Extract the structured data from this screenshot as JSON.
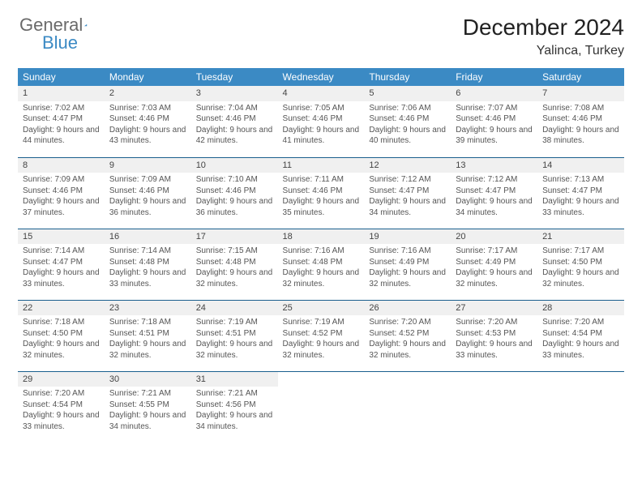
{
  "logo": {
    "part1": "General",
    "part2": "Blue"
  },
  "title": "December 2024",
  "location": "Yalinca, Turkey",
  "colors": {
    "accent": "#3b8ac4",
    "border": "#1a5f8e",
    "row_shade": "#f0f0f0",
    "text": "#333333",
    "muted": "#555555",
    "bg": "#ffffff"
  },
  "weekdays": [
    "Sunday",
    "Monday",
    "Tuesday",
    "Wednesday",
    "Thursday",
    "Friday",
    "Saturday"
  ],
  "days": [
    {
      "n": "1",
      "sunrise": "Sunrise: 7:02 AM",
      "sunset": "Sunset: 4:47 PM",
      "daylight": "Daylight: 9 hours and 44 minutes."
    },
    {
      "n": "2",
      "sunrise": "Sunrise: 7:03 AM",
      "sunset": "Sunset: 4:46 PM",
      "daylight": "Daylight: 9 hours and 43 minutes."
    },
    {
      "n": "3",
      "sunrise": "Sunrise: 7:04 AM",
      "sunset": "Sunset: 4:46 PM",
      "daylight": "Daylight: 9 hours and 42 minutes."
    },
    {
      "n": "4",
      "sunrise": "Sunrise: 7:05 AM",
      "sunset": "Sunset: 4:46 PM",
      "daylight": "Daylight: 9 hours and 41 minutes."
    },
    {
      "n": "5",
      "sunrise": "Sunrise: 7:06 AM",
      "sunset": "Sunset: 4:46 PM",
      "daylight": "Daylight: 9 hours and 40 minutes."
    },
    {
      "n": "6",
      "sunrise": "Sunrise: 7:07 AM",
      "sunset": "Sunset: 4:46 PM",
      "daylight": "Daylight: 9 hours and 39 minutes."
    },
    {
      "n": "7",
      "sunrise": "Sunrise: 7:08 AM",
      "sunset": "Sunset: 4:46 PM",
      "daylight": "Daylight: 9 hours and 38 minutes."
    },
    {
      "n": "8",
      "sunrise": "Sunrise: 7:09 AM",
      "sunset": "Sunset: 4:46 PM",
      "daylight": "Daylight: 9 hours and 37 minutes."
    },
    {
      "n": "9",
      "sunrise": "Sunrise: 7:09 AM",
      "sunset": "Sunset: 4:46 PM",
      "daylight": "Daylight: 9 hours and 36 minutes."
    },
    {
      "n": "10",
      "sunrise": "Sunrise: 7:10 AM",
      "sunset": "Sunset: 4:46 PM",
      "daylight": "Daylight: 9 hours and 36 minutes."
    },
    {
      "n": "11",
      "sunrise": "Sunrise: 7:11 AM",
      "sunset": "Sunset: 4:46 PM",
      "daylight": "Daylight: 9 hours and 35 minutes."
    },
    {
      "n": "12",
      "sunrise": "Sunrise: 7:12 AM",
      "sunset": "Sunset: 4:47 PM",
      "daylight": "Daylight: 9 hours and 34 minutes."
    },
    {
      "n": "13",
      "sunrise": "Sunrise: 7:12 AM",
      "sunset": "Sunset: 4:47 PM",
      "daylight": "Daylight: 9 hours and 34 minutes."
    },
    {
      "n": "14",
      "sunrise": "Sunrise: 7:13 AM",
      "sunset": "Sunset: 4:47 PM",
      "daylight": "Daylight: 9 hours and 33 minutes."
    },
    {
      "n": "15",
      "sunrise": "Sunrise: 7:14 AM",
      "sunset": "Sunset: 4:47 PM",
      "daylight": "Daylight: 9 hours and 33 minutes."
    },
    {
      "n": "16",
      "sunrise": "Sunrise: 7:14 AM",
      "sunset": "Sunset: 4:48 PM",
      "daylight": "Daylight: 9 hours and 33 minutes."
    },
    {
      "n": "17",
      "sunrise": "Sunrise: 7:15 AM",
      "sunset": "Sunset: 4:48 PM",
      "daylight": "Daylight: 9 hours and 32 minutes."
    },
    {
      "n": "18",
      "sunrise": "Sunrise: 7:16 AM",
      "sunset": "Sunset: 4:48 PM",
      "daylight": "Daylight: 9 hours and 32 minutes."
    },
    {
      "n": "19",
      "sunrise": "Sunrise: 7:16 AM",
      "sunset": "Sunset: 4:49 PM",
      "daylight": "Daylight: 9 hours and 32 minutes."
    },
    {
      "n": "20",
      "sunrise": "Sunrise: 7:17 AM",
      "sunset": "Sunset: 4:49 PM",
      "daylight": "Daylight: 9 hours and 32 minutes."
    },
    {
      "n": "21",
      "sunrise": "Sunrise: 7:17 AM",
      "sunset": "Sunset: 4:50 PM",
      "daylight": "Daylight: 9 hours and 32 minutes."
    },
    {
      "n": "22",
      "sunrise": "Sunrise: 7:18 AM",
      "sunset": "Sunset: 4:50 PM",
      "daylight": "Daylight: 9 hours and 32 minutes."
    },
    {
      "n": "23",
      "sunrise": "Sunrise: 7:18 AM",
      "sunset": "Sunset: 4:51 PM",
      "daylight": "Daylight: 9 hours and 32 minutes."
    },
    {
      "n": "24",
      "sunrise": "Sunrise: 7:19 AM",
      "sunset": "Sunset: 4:51 PM",
      "daylight": "Daylight: 9 hours and 32 minutes."
    },
    {
      "n": "25",
      "sunrise": "Sunrise: 7:19 AM",
      "sunset": "Sunset: 4:52 PM",
      "daylight": "Daylight: 9 hours and 32 minutes."
    },
    {
      "n": "26",
      "sunrise": "Sunrise: 7:20 AM",
      "sunset": "Sunset: 4:52 PM",
      "daylight": "Daylight: 9 hours and 32 minutes."
    },
    {
      "n": "27",
      "sunrise": "Sunrise: 7:20 AM",
      "sunset": "Sunset: 4:53 PM",
      "daylight": "Daylight: 9 hours and 33 minutes."
    },
    {
      "n": "28",
      "sunrise": "Sunrise: 7:20 AM",
      "sunset": "Sunset: 4:54 PM",
      "daylight": "Daylight: 9 hours and 33 minutes."
    },
    {
      "n": "29",
      "sunrise": "Sunrise: 7:20 AM",
      "sunset": "Sunset: 4:54 PM",
      "daylight": "Daylight: 9 hours and 33 minutes."
    },
    {
      "n": "30",
      "sunrise": "Sunrise: 7:21 AM",
      "sunset": "Sunset: 4:55 PM",
      "daylight": "Daylight: 9 hours and 34 minutes."
    },
    {
      "n": "31",
      "sunrise": "Sunrise: 7:21 AM",
      "sunset": "Sunset: 4:56 PM",
      "daylight": "Daylight: 9 hours and 34 minutes."
    }
  ],
  "start_weekday": 0,
  "num_weeks": 5
}
